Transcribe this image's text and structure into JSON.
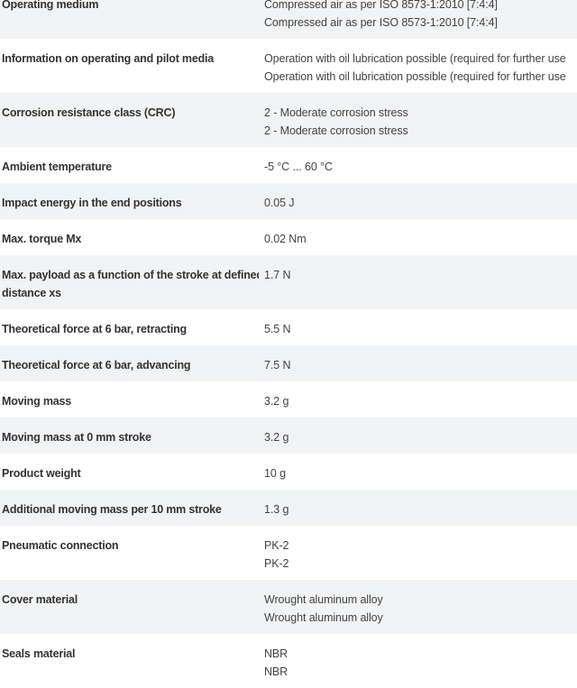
{
  "rows": [
    {
      "label": "Operating medium",
      "values": [
        "Compressed air as per ISO 8573-1:2010 [7:4:4]",
        "Compressed air as per ISO 8573-1:2010 [7:4:4]"
      ]
    },
    {
      "label": "Information on operating and pilot media",
      "values": [
        "Operation with oil lubrication possible (required for further use",
        "Operation with oil lubrication possible (required for further use"
      ]
    },
    {
      "label": "Corrosion resistance class (CRC)",
      "values": [
        "2 - Moderate corrosion stress",
        "2 - Moderate corrosion stress"
      ]
    },
    {
      "label": "Ambient temperature",
      "values": [
        "-5 °C ... 60 °C"
      ]
    },
    {
      "label": "Impact energy in the end positions",
      "values": [
        "0.05 J"
      ]
    },
    {
      "label": "Max. torque Mx",
      "values": [
        "0.02 Nm"
      ]
    },
    {
      "label": "Max. payload as a function of the stroke at defined distance xs",
      "label_lines": [
        "Max. payload as a function of the stroke at defined",
        "distance xs"
      ],
      "values": [
        "1.7 N"
      ]
    },
    {
      "label": "Theoretical force at 6 bar, retracting",
      "values": [
        "5.5 N"
      ]
    },
    {
      "label": "Theoretical force at 6 bar, advancing",
      "values": [
        "7.5 N"
      ]
    },
    {
      "label": "Moving mass",
      "values": [
        "3.2 g"
      ]
    },
    {
      "label": "Moving mass at 0 mm stroke",
      "values": [
        "3.2 g"
      ]
    },
    {
      "label": "Product weight",
      "values": [
        "10 g"
      ]
    },
    {
      "label": "Additional moving mass per 10 mm stroke",
      "values": [
        "1.3 g"
      ]
    },
    {
      "label": "Pneumatic connection",
      "values": [
        "PK-2",
        "PK-2"
      ]
    },
    {
      "label": "Cover material",
      "values": [
        "Wrought aluminum alloy",
        "Wrought aluminum alloy"
      ]
    },
    {
      "label": "Seals material",
      "values": [
        "NBR",
        "NBR"
      ]
    }
  ]
}
